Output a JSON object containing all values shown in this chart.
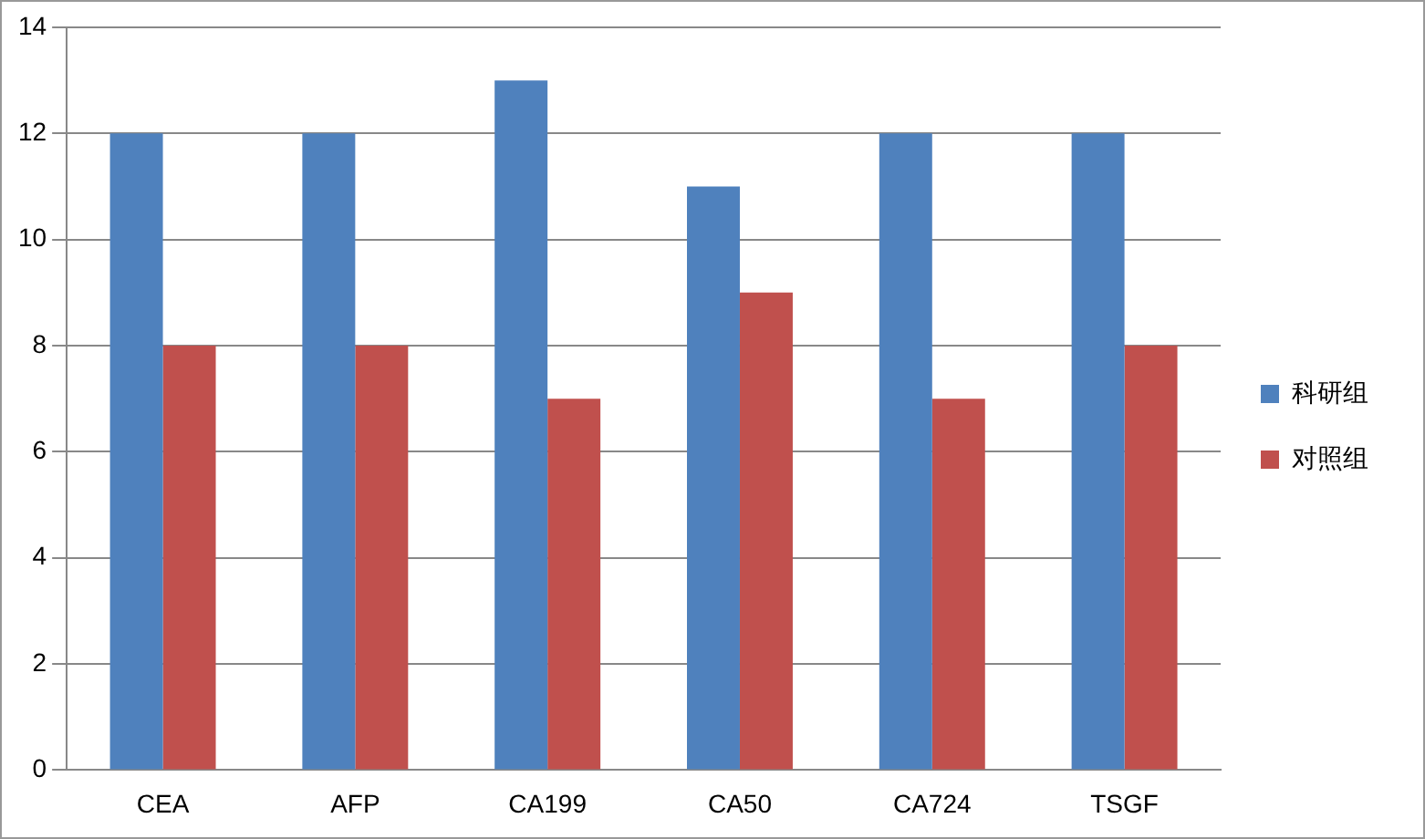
{
  "chart_data": {
    "type": "bar",
    "categories": [
      "CEA",
      "AFP",
      "CA199",
      "CA50",
      "CA724",
      "TSGF"
    ],
    "series": [
      {
        "name": "科研组",
        "color": "#4f81bd",
        "values": [
          12,
          12,
          13,
          11,
          12,
          12
        ]
      },
      {
        "name": "对照组",
        "color": "#c0504d",
        "values": [
          8,
          8,
          7,
          9,
          7,
          8
        ]
      }
    ],
    "ylim": [
      0,
      14
    ],
    "yticks": [
      0,
      2,
      4,
      6,
      8,
      10,
      12,
      14
    ],
    "grid": "y",
    "legend": "right"
  }
}
